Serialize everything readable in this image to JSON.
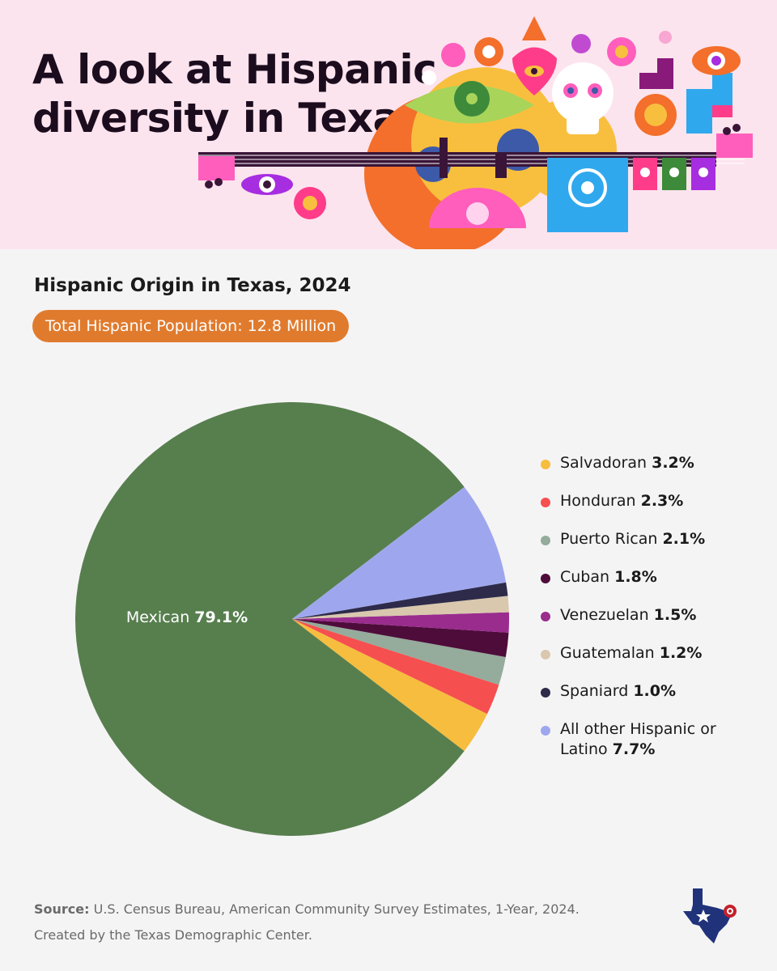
{
  "banner": {
    "title_line1": "A look at Hispanic",
    "title_line2": "diversity in Texas"
  },
  "subtitle": "Hispanic Origin in Texas, 2024",
  "total_pill": "Total Hispanic Population: 12.8 Million",
  "chart_data": {
    "type": "pie",
    "title": "Hispanic Origin in Texas, 2024",
    "unit": "%",
    "slices": [
      {
        "label": "Mexican",
        "value": 79.1,
        "display": "79.1%",
        "color": "#577f4e"
      },
      {
        "label": "Salvadoran",
        "value": 3.2,
        "display": "3.2%",
        "color": "#f6bd3e"
      },
      {
        "label": "Honduran",
        "value": 2.3,
        "display": "2.3%",
        "color": "#f64f4f"
      },
      {
        "label": "Puerto Rican",
        "value": 2.1,
        "display": "2.1%",
        "color": "#95ab9b"
      },
      {
        "label": "Cuban",
        "value": 1.8,
        "display": "1.8%",
        "color": "#4e0c3a"
      },
      {
        "label": "Venezuelan",
        "value": 1.5,
        "display": "1.5%",
        "color": "#9a2c8e"
      },
      {
        "label": "Guatemalan",
        "value": 1.2,
        "display": "1.2%",
        "color": "#d9c8ae"
      },
      {
        "label": "Spaniard",
        "value": 1.0,
        "display": "1.0%",
        "color": "#2e2a4a"
      },
      {
        "label": "All other Hispanic or Latino",
        "value": 7.7,
        "display": "7.7%",
        "color": "#9ea7ee"
      }
    ],
    "legend_position": "right"
  },
  "legend": [
    {
      "label": "Salvadoran",
      "value": "3.2%",
      "color": "#f6bd3e"
    },
    {
      "label": "Honduran",
      "value": "2.3%",
      "color": "#f64f4f"
    },
    {
      "label": "Puerto Rican",
      "value": "2.1%",
      "color": "#95ab9b"
    },
    {
      "label": "Cuban",
      "value": "1.8%",
      "color": "#4e0c3a"
    },
    {
      "label": "Venezuelan",
      "value": "1.5%",
      "color": "#9a2c8e"
    },
    {
      "label": "Guatemalan",
      "value": "1.2%",
      "color": "#d9c8ae"
    },
    {
      "label": "Spaniard",
      "value": "1.0%",
      "color": "#2e2a4a"
    },
    {
      "label": "All other Hispanic or Latino",
      "value": "7.7%",
      "color": "#9ea7ee"
    }
  ],
  "pie_label": {
    "name": "Mexican",
    "value": "79.1%"
  },
  "footer": {
    "source_label": "Source:",
    "source_text": "U.S. Census Bureau, American Community Survey Estimates, 1-Year, 2024.",
    "credit": "Created by the Texas Demographic Center."
  },
  "logo": "texas-demographic-center-logo",
  "colors": {
    "banner_bg": "#fce4ee",
    "page_bg": "#f5f4f5",
    "pill": "#e07b2e",
    "title": "#1b0c1e"
  }
}
